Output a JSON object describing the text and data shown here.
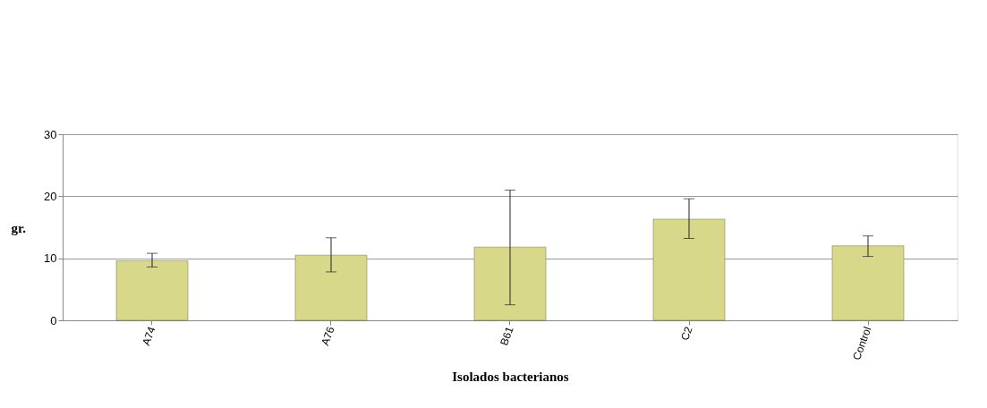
{
  "chart_data": {
    "type": "bar",
    "xlabel": "Isolados bacterianos",
    "ylabel": "gr.",
    "categories": [
      "A74",
      "A76",
      "B61",
      "C2",
      "Control"
    ],
    "values": [
      9.6,
      10.5,
      11.8,
      16.3,
      12.0
    ],
    "errors": [
      [
        8.6,
        10.8
      ],
      [
        7.8,
        13.3
      ],
      [
        2.5,
        21.0
      ],
      [
        13.2,
        19.6
      ],
      [
        10.3,
        13.6
      ]
    ],
    "color": "#d8d88a",
    "ylim": [
      0,
      30
    ],
    "yticks": [
      0,
      10,
      20,
      30
    ],
    "grid": "y"
  }
}
